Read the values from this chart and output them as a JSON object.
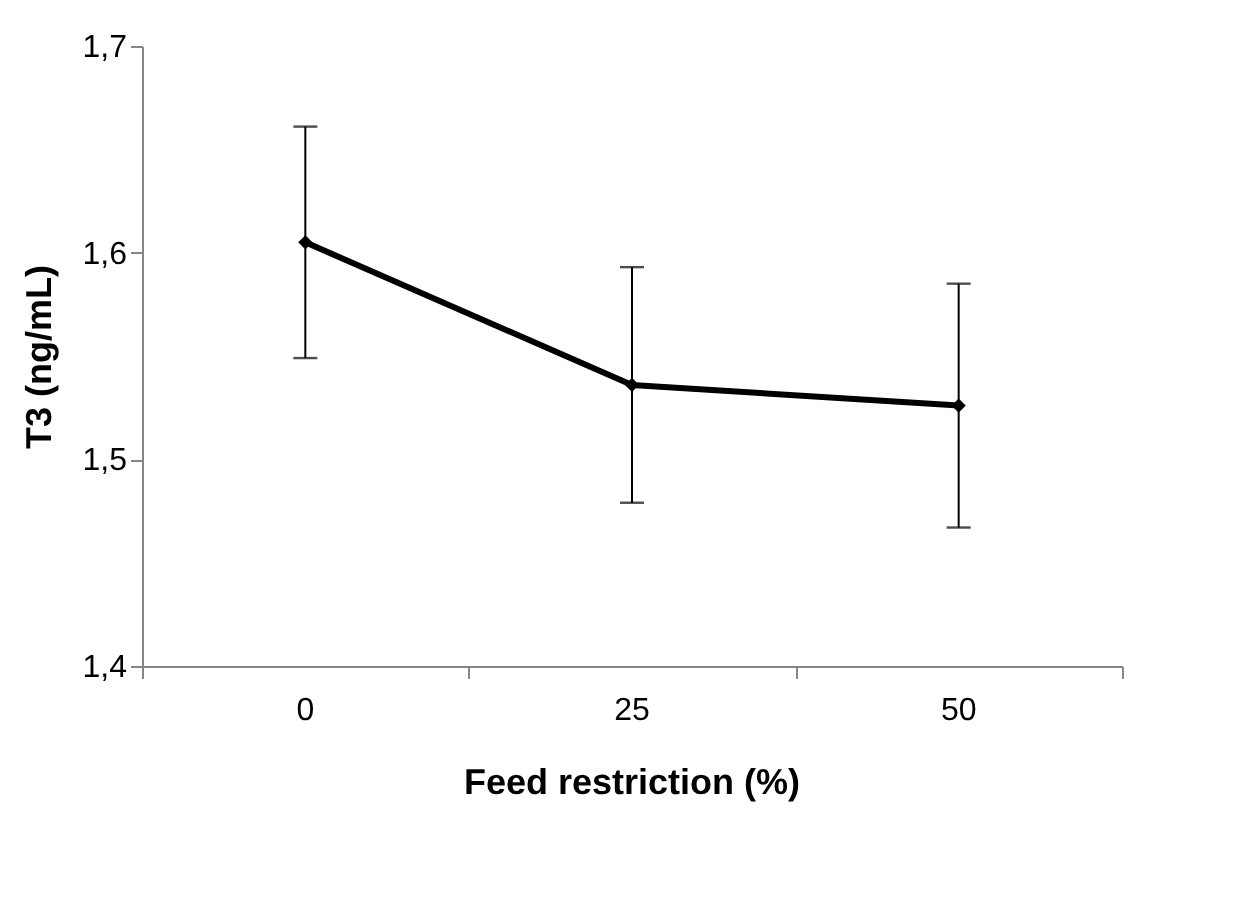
{
  "chart_data": {
    "type": "line",
    "xlabel": "Feed restriction (%)",
    "ylabel": "T3 (ng/mL)",
    "categories": [
      "0",
      "25",
      "50"
    ],
    "series": [
      {
        "color": "#000000",
        "values": [
          1.605,
          1.536,
          1.526
        ],
        "errors": [
          [
            1.549,
            1.661
          ],
          [
            1.479,
            1.593
          ],
          [
            1.467,
            1.585
          ]
        ]
      }
    ],
    "ylim": [
      1.4,
      1.7
    ],
    "yticks": [
      {
        "value": 1.4,
        "label": "1,4"
      },
      {
        "value": 1.5,
        "label": "1,5"
      },
      {
        "value": 1.6,
        "label": "1,6"
      },
      {
        "value": 1.7,
        "label": "1,7"
      }
    ],
    "marker": "diamond",
    "line_style": "solid",
    "grid": false
  }
}
